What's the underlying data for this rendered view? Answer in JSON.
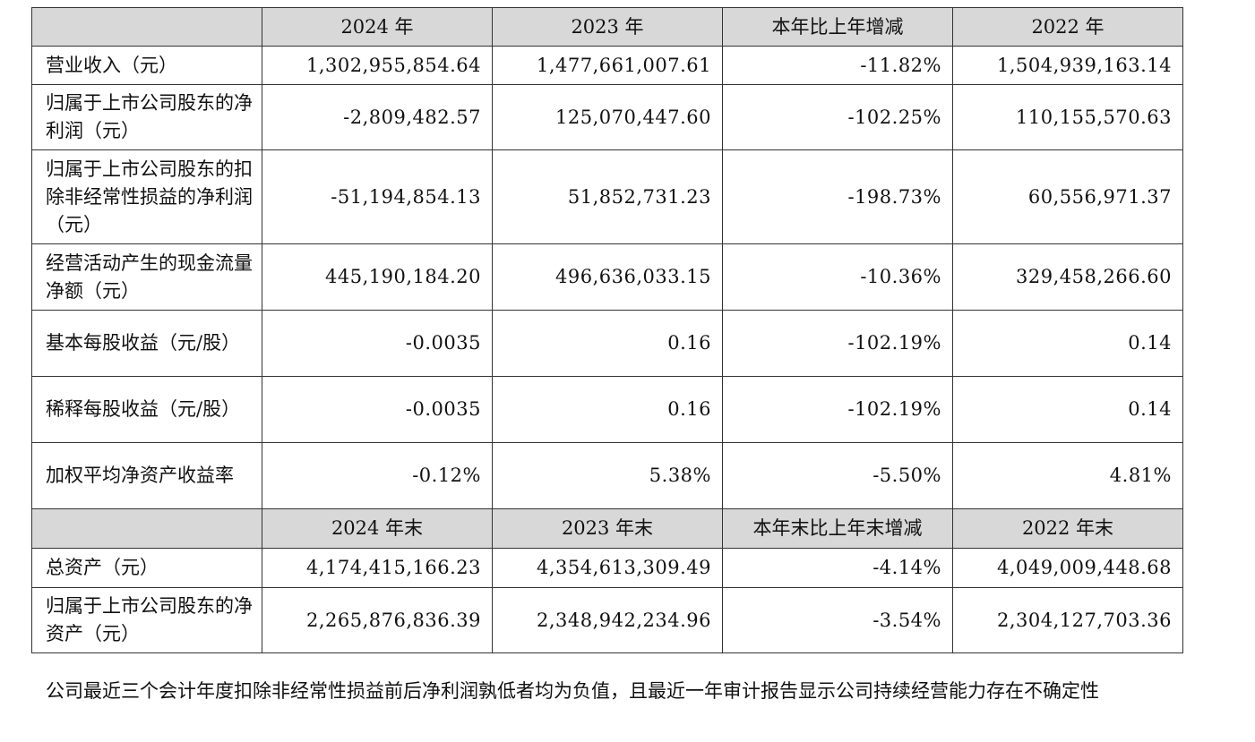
{
  "table": {
    "header1": [
      "",
      "2024 年",
      "2023 年",
      "本年比上年增减",
      "2022 年"
    ],
    "rows1": [
      {
        "label": "营业收入（元）",
        "v2024": "1,302,955,854.64",
        "v2023": "1,477,661,007.61",
        "change": "-11.82%",
        "v2022": "1,504,939,163.14"
      },
      {
        "label": "归属于上市公司股东的净利润（元）",
        "v2024": "-2,809,482.57",
        "v2023": "125,070,447.60",
        "change": "-102.25%",
        "v2022": "110,155,570.63"
      },
      {
        "label": "归属于上市公司股东的扣除非经常性损益的净利润（元）",
        "v2024": "-51,194,854.13",
        "v2023": "51,852,731.23",
        "change": "-198.73%",
        "v2022": "60,556,971.37"
      },
      {
        "label": "经营活动产生的现金流量净额（元）",
        "v2024": "445,190,184.20",
        "v2023": "496,636,033.15",
        "change": "-10.36%",
        "v2022": "329,458,266.60"
      },
      {
        "label": "基本每股收益（元/股）",
        "v2024": "-0.0035",
        "v2023": "0.16",
        "change": "-102.19%",
        "v2022": "0.14"
      },
      {
        "label": "稀释每股收益（元/股）",
        "v2024": "-0.0035",
        "v2023": "0.16",
        "change": "-102.19%",
        "v2022": "0.14"
      },
      {
        "label": "加权平均净资产收益率",
        "v2024": "-0.12%",
        "v2023": "5.38%",
        "change": "-5.50%",
        "v2022": "4.81%"
      }
    ],
    "header2": [
      "",
      "2024 年末",
      "2023 年末",
      "本年末比上年末增减",
      "2022 年末"
    ],
    "rows2": [
      {
        "label": "总资产（元）",
        "v2024": "4,174,415,166.23",
        "v2023": "4,354,613,309.49",
        "change": "-4.14%",
        "v2022": "4,049,009,448.68"
      },
      {
        "label": "归属于上市公司股东的净资产（元）",
        "v2024": "2,265,876,836.39",
        "v2023": "2,348,942,234.96",
        "change": "-3.54%",
        "v2022": "2,304,127,703.36"
      }
    ]
  },
  "footnote": "公司最近三个会计年度扣除非经常性损益前后净利润孰低者均为负值，且最近一年审计报告显示公司持续经营能力存在不确定性"
}
